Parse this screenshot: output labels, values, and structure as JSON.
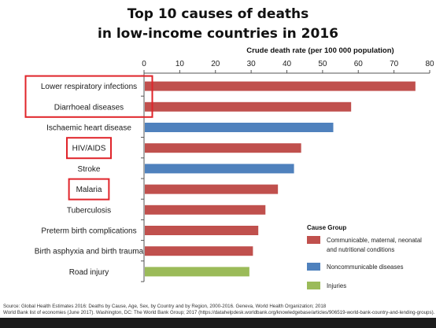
{
  "chart_data": {
    "type": "bar",
    "orientation": "horizontal",
    "title_lines": [
      "Top 10 causes of deaths",
      "in low-income countries in 2016"
    ],
    "xlabel": "Crude death rate (per 100 000 population)",
    "x_axis_position": "top",
    "xlim": [
      0,
      80
    ],
    "xticks": [
      0,
      10,
      20,
      30,
      40,
      50,
      60,
      70,
      80
    ],
    "grid": false,
    "categories": [
      "Lower respiratory infections",
      "Diarrhoeal diseases",
      "Ischaemic heart disease",
      "HIV/AIDS",
      "Stroke",
      "Malaria",
      "Tuberculosis",
      "Preterm birth complications",
      "Birth asphyxia and birth trauma",
      "Road injury"
    ],
    "values": [
      76,
      58,
      53,
      44,
      42,
      37.5,
      34,
      32,
      30.5,
      29.5
    ],
    "groups": [
      0,
      0,
      1,
      0,
      1,
      0,
      0,
      0,
      0,
      2
    ],
    "highlighted": [
      [
        "Lower respiratory infections",
        "Diarrhoeal diseases"
      ],
      [
        "HIV/AIDS"
      ],
      [
        "Malaria"
      ]
    ],
    "legend": {
      "title": "Cause Group",
      "placement": "bottom-right",
      "items": [
        {
          "lines": [
            "Communicable, maternal, neonatal",
            "and nutritional conditions"
          ],
          "color": "#c0504d"
        },
        {
          "lines": [
            "Noncommunicable diseases"
          ],
          "color": "#4f81bd"
        },
        {
          "lines": [
            "Injuries"
          ],
          "color": "#9bbb59"
        }
      ]
    },
    "highlight_color": "#e0242a",
    "axis_color": "#555555"
  },
  "footer": {
    "line1": "Source: Global Health Estimates 2016: Deaths by Cause, Age, Sex, by Country and by Region, 2000-2016. Geneva, World Health Organization; 2018",
    "line2": "World Bank list of economies (June 2017). Washington, DC: The World Bank Group; 2017 (https://datahelpdesk.worldbank.org/knowledgebase/articles/906519-world-bank-country-and-lending-groups)."
  }
}
